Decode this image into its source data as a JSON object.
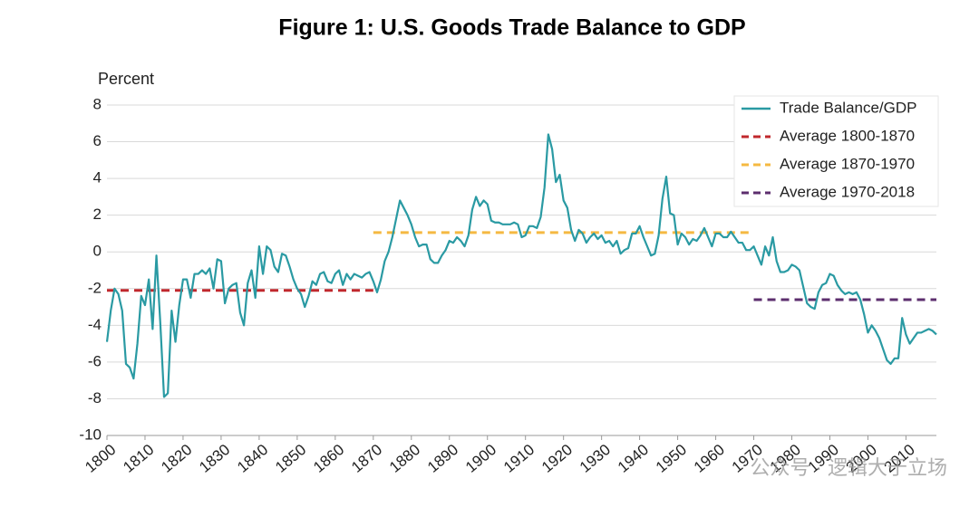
{
  "chart_data": {
    "type": "line",
    "title": "Figure 1: U.S. Goods Trade Balance to GDP",
    "y_label": "Percent",
    "watermark": "公众号 · 逻辑大于立场",
    "xlim": [
      1800,
      2018
    ],
    "xticks": [
      1800,
      1810,
      1820,
      1830,
      1840,
      1850,
      1860,
      1870,
      1880,
      1890,
      1900,
      1910,
      1920,
      1930,
      1940,
      1950,
      1960,
      1970,
      1980,
      1990,
      2000,
      2010
    ],
    "ylim": [
      -10,
      8
    ],
    "yticks": [
      -10,
      -8,
      -6,
      -4,
      -2,
      0,
      2,
      4,
      6,
      8
    ],
    "grid": true,
    "legend": "upper right",
    "series": [
      {
        "name": "Trade Balance/GDP",
        "color": "#2a9aa3",
        "dashed": false,
        "x": [
          1800,
          1801,
          1802,
          1803,
          1804,
          1805,
          1806,
          1807,
          1808,
          1809,
          1810,
          1811,
          1812,
          1813,
          1814,
          1815,
          1816,
          1817,
          1818,
          1819,
          1820,
          1821,
          1822,
          1823,
          1824,
          1825,
          1826,
          1827,
          1828,
          1829,
          1830,
          1831,
          1832,
          1833,
          1834,
          1835,
          1836,
          1837,
          1838,
          1839,
          1840,
          1841,
          1842,
          1843,
          1844,
          1845,
          1846,
          1847,
          1848,
          1849,
          1850,
          1851,
          1852,
          1853,
          1854,
          1855,
          1856,
          1857,
          1858,
          1859,
          1860,
          1861,
          1862,
          1863,
          1864,
          1865,
          1866,
          1867,
          1868,
          1869,
          1870,
          1871,
          1872,
          1873,
          1874,
          1875,
          1876,
          1877,
          1878,
          1879,
          1880,
          1881,
          1882,
          1883,
          1884,
          1885,
          1886,
          1887,
          1888,
          1889,
          1890,
          1891,
          1892,
          1893,
          1894,
          1895,
          1896,
          1897,
          1898,
          1899,
          1900,
          1901,
          1902,
          1903,
          1904,
          1905,
          1906,
          1907,
          1908,
          1909,
          1910,
          1911,
          1912,
          1913,
          1914,
          1915,
          1916,
          1917,
          1918,
          1919,
          1920,
          1921,
          1922,
          1923,
          1924,
          1925,
          1926,
          1927,
          1928,
          1929,
          1930,
          1931,
          1932,
          1933,
          1934,
          1935,
          1936,
          1937,
          1938,
          1939,
          1940,
          1941,
          1942,
          1943,
          1944,
          1945,
          1946,
          1947,
          1948,
          1949,
          1950,
          1951,
          1952,
          1953,
          1954,
          1955,
          1956,
          1957,
          1958,
          1959,
          1960,
          1961,
          1962,
          1963,
          1964,
          1965,
          1966,
          1967,
          1968,
          1969,
          1970,
          1971,
          1972,
          1973,
          1974,
          1975,
          1976,
          1977,
          1978,
          1979,
          1980,
          1981,
          1982,
          1983,
          1984,
          1985,
          1986,
          1987,
          1988,
          1989,
          1990,
          1991,
          1992,
          1993,
          1994,
          1995,
          1996,
          1997,
          1998,
          1999,
          2000,
          2001,
          2002,
          2003,
          2004,
          2005,
          2006,
          2007,
          2008,
          2009,
          2010,
          2011,
          2012,
          2013,
          2014,
          2015,
          2016,
          2017,
          2018
        ],
        "values": [
          -4.9,
          -3.2,
          -2.0,
          -2.3,
          -3.2,
          -6.1,
          -6.3,
          -6.9,
          -5.0,
          -2.4,
          -2.9,
          -1.5,
          -4.2,
          -0.2,
          -3.8,
          -7.9,
          -7.7,
          -3.2,
          -4.9,
          -2.9,
          -1.5,
          -1.5,
          -2.5,
          -1.2,
          -1.2,
          -1.0,
          -1.2,
          -0.9,
          -2.0,
          -0.4,
          -0.5,
          -2.8,
          -2.0,
          -1.8,
          -1.7,
          -3.3,
          -4.0,
          -1.7,
          -1.0,
          -2.5,
          0.3,
          -1.2,
          0.3,
          0.1,
          -0.8,
          -1.1,
          -0.1,
          -0.2,
          -0.8,
          -1.5,
          -2.0,
          -2.3,
          -3.0,
          -2.4,
          -1.6,
          -1.8,
          -1.2,
          -1.1,
          -1.6,
          -1.7,
          -1.2,
          -1.0,
          -1.8,
          -1.2,
          -1.5,
          -1.2,
          -1.3,
          -1.4,
          -1.2,
          -1.1,
          -1.6,
          -2.2,
          -1.5,
          -0.5,
          0.0,
          0.8,
          1.8,
          2.8,
          2.4,
          2.0,
          1.5,
          0.8,
          0.3,
          0.4,
          0.4,
          -0.4,
          -0.6,
          -0.6,
          -0.2,
          0.1,
          0.6,
          0.5,
          0.8,
          0.6,
          0.3,
          0.9,
          2.3,
          3.0,
          2.5,
          2.8,
          2.6,
          1.7,
          1.6,
          1.6,
          1.5,
          1.5,
          1.5,
          1.6,
          1.5,
          0.8,
          0.9,
          1.4,
          1.4,
          1.3,
          1.9,
          3.5,
          6.4,
          5.6,
          3.8,
          4.2,
          2.8,
          2.4,
          1.2,
          0.6,
          1.2,
          1.0,
          0.5,
          0.8,
          1.0,
          0.7,
          0.9,
          0.5,
          0.6,
          0.3,
          0.6,
          -0.1,
          0.1,
          0.2,
          1.0,
          1.0,
          1.4,
          0.8,
          0.3,
          -0.2,
          -0.1,
          0.9,
          2.9,
          4.1,
          2.1,
          2.0,
          0.4,
          1.0,
          0.8,
          0.4,
          0.7,
          0.6,
          0.9,
          1.3,
          0.8,
          0.3,
          1.0,
          1.0,
          0.8,
          0.8,
          1.1,
          0.8,
          0.5,
          0.5,
          0.1,
          0.1,
          0.3,
          -0.2,
          -0.7,
          0.3,
          -0.2,
          0.8,
          -0.5,
          -1.1,
          -1.1,
          -1.0,
          -0.7,
          -0.8,
          -1.0,
          -1.9,
          -2.8,
          -3.0,
          -3.1,
          -2.2,
          -1.8,
          -1.7,
          -1.2,
          -1.3,
          -1.8,
          -2.1,
          -2.3,
          -2.2,
          -2.3,
          -2.2,
          -2.6,
          -3.4,
          -4.4,
          -4.0,
          -4.3,
          -4.7,
          -5.3,
          -5.9,
          -6.1,
          -5.8,
          -5.8,
          -3.6,
          -4.5,
          -5.0,
          -4.7,
          -4.4,
          -4.4,
          -4.3,
          -4.2,
          -4.3,
          -4.5
        ]
      },
      {
        "name": "Average 1800-1870",
        "color": "#c0282d",
        "dashed": true,
        "x": [
          1800,
          1870
        ],
        "values": [
          -2.1,
          -2.1
        ]
      },
      {
        "name": "Average 1870-1970",
        "color": "#f5b942",
        "dashed": true,
        "x": [
          1870,
          1970
        ],
        "values": [
          1.05,
          1.05
        ]
      },
      {
        "name": "Average 1970-2018",
        "color": "#5c2e6e",
        "dashed": true,
        "x": [
          1970,
          2018
        ],
        "values": [
          -2.6,
          -2.6
        ]
      }
    ]
  }
}
